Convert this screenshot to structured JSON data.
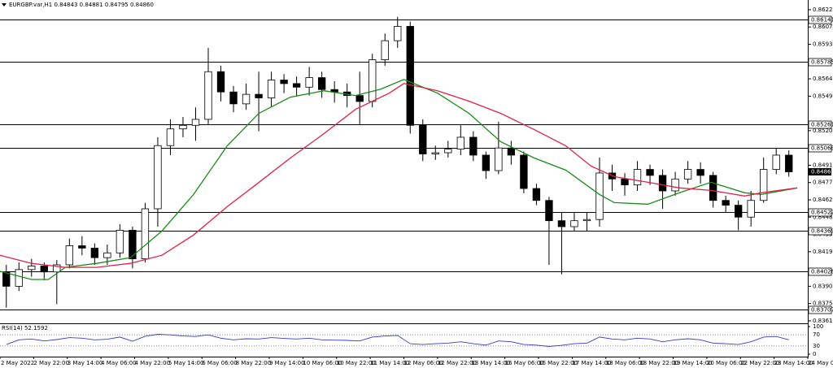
{
  "chart_data": [
    {
      "type": "candlestick",
      "title": "EURGBP.var,H1 0.84843 0.84881 0.84795 0.84860",
      "xlim": [
        0,
        384
      ],
      "xticks": [
        {
          "value": 0,
          "label": "2 May 2022"
        },
        {
          "value": 16,
          "label": "2 May 22:00"
        },
        {
          "value": 32,
          "label": "3 May 14:00"
        },
        {
          "value": 48,
          "label": "4 May 06:00"
        },
        {
          "value": 64,
          "label": "4 May 22:00"
        },
        {
          "value": 80,
          "label": "5 May 14:00"
        },
        {
          "value": 96,
          "label": "6 May 06:00"
        },
        {
          "value": 112,
          "label": "8 May 22:00"
        },
        {
          "value": 128,
          "label": "9 May 14:00"
        },
        {
          "value": 144,
          "label": "10 May 06:00"
        },
        {
          "value": 160,
          "label": "10 May 22:00"
        },
        {
          "value": 176,
          "label": "11 May 14:00"
        },
        {
          "value": 192,
          "label": "12 May 06:00"
        },
        {
          "value": 208,
          "label": "12 May 22:00"
        },
        {
          "value": 224,
          "label": "13 May 14:00"
        },
        {
          "value": 240,
          "label": "16 May 06:00"
        },
        {
          "value": 256,
          "label": "16 May 22:00"
        },
        {
          "value": 272,
          "label": "17 May 14:00"
        },
        {
          "value": 288,
          "label": "18 May 06:00"
        },
        {
          "value": 304,
          "label": "18 May 22:00"
        },
        {
          "value": 320,
          "label": "19 May 14:00"
        },
        {
          "value": 336,
          "label": "20 May 06:00"
        },
        {
          "value": 352,
          "label": "22 May 22:00"
        },
        {
          "value": 368,
          "label": "23 May 14:00"
        },
        {
          "value": 384,
          "label": "24 May 06:00"
        }
      ],
      "ylim": [
        0.83596,
        0.86274
      ],
      "yticks": [
        {
          "value": 0.8622,
          "label": "0.86220"
        },
        0.86075,
        {
          "value": 0.8593,
          "label": "0.85930"
        },
        {
          "value": 0.8564,
          "label": "0.85640"
        },
        0.85495,
        0.85205,
        {
          "value": 0.8506,
          "label": "0.85060"
        },
        0.84915,
        {
          "value": 0.8477,
          "label": "0.84770"
        },
        0.84625,
        {
          "value": 0.8448,
          "label": "0.84480"
        },
        0.84335,
        {
          "value": 0.8419,
          "label": "0.84190"
        },
        {
          "value": 0.839,
          "label": "0.83900"
        },
        0.83755,
        {
          "value": 0.8361,
          "label": "0.83610"
        }
      ],
      "levels": [
        0.86141,
        0.85785,
        0.85261,
        0.85063,
        0.84522,
        0.84369,
        0.84026,
        0.83707
      ],
      "current_price": {
        "value": 0.8486,
        "label": "0.84860"
      },
      "up_color": "#ffffff",
      "down_color": "#000000",
      "x": [
        3,
        9,
        15,
        21,
        27,
        33,
        39,
        45,
        51,
        57,
        63,
        69,
        75,
        81,
        87,
        93,
        99,
        105,
        111,
        117,
        123,
        129,
        135,
        141,
        147,
        153,
        159,
        165,
        171,
        177,
        183,
        189,
        195,
        201,
        207,
        213,
        219,
        225,
        231,
        237,
        243,
        249,
        255,
        261,
        267,
        273,
        279,
        285,
        291,
        297,
        303,
        309,
        315,
        321,
        327,
        333,
        339,
        345,
        351,
        357,
        363,
        369,
        375
      ],
      "open": [
        0.8402,
        0.839,
        0.8404,
        0.8407,
        0.8402,
        0.8408,
        0.8424,
        0.8422,
        0.8414,
        0.8418,
        0.8437,
        0.8413,
        0.8455,
        0.8508,
        0.8522,
        0.8525,
        0.853,
        0.857,
        0.8553,
        0.8543,
        0.8551,
        0.8548,
        0.8563,
        0.856,
        0.8557,
        0.8565,
        0.8555,
        0.8553,
        0.855,
        0.8545,
        0.858,
        0.8596,
        0.8608,
        0.8525,
        0.8501,
        0.8502,
        0.8505,
        0.8515,
        0.85,
        0.8487,
        0.8506,
        0.85,
        0.8472,
        0.8462,
        0.8445,
        0.844,
        0.8445,
        0.8446,
        0.8485,
        0.848,
        0.8475,
        0.8488,
        0.8483,
        0.847,
        0.848,
        0.8488,
        0.8483,
        0.8462,
        0.8458,
        0.8448,
        0.8462,
        0.8488,
        0.85
      ],
      "high": [
        0.8408,
        0.841,
        0.8413,
        0.841,
        0.8412,
        0.843,
        0.8432,
        0.8426,
        0.8425,
        0.8442,
        0.844,
        0.846,
        0.8515,
        0.853,
        0.8532,
        0.854,
        0.859,
        0.8575,
        0.8558,
        0.856,
        0.857,
        0.857,
        0.8568,
        0.8566,
        0.8574,
        0.857,
        0.8562,
        0.856,
        0.857,
        0.8585,
        0.8602,
        0.8616,
        0.8612,
        0.853,
        0.8508,
        0.8512,
        0.8525,
        0.852,
        0.8503,
        0.8528,
        0.8512,
        0.8503,
        0.8476,
        0.8465,
        0.8452,
        0.8452,
        0.8452,
        0.8498,
        0.8492,
        0.8485,
        0.8495,
        0.8492,
        0.8488,
        0.8486,
        0.8495,
        0.8494,
        0.8486,
        0.8466,
        0.8462,
        0.847,
        0.8498,
        0.8506,
        0.8504
      ],
      "low": [
        0.8372,
        0.8386,
        0.8398,
        0.8395,
        0.8375,
        0.8405,
        0.8416,
        0.8408,
        0.8408,
        0.8414,
        0.8405,
        0.841,
        0.844,
        0.85,
        0.8515,
        0.8512,
        0.8525,
        0.8545,
        0.8536,
        0.8538,
        0.852,
        0.854,
        0.8552,
        0.855,
        0.855,
        0.8548,
        0.8544,
        0.854,
        0.8526,
        0.854,
        0.8575,
        0.859,
        0.8518,
        0.8495,
        0.8496,
        0.8498,
        0.85,
        0.8495,
        0.848,
        0.8484,
        0.8492,
        0.8468,
        0.8458,
        0.8408,
        0.84,
        0.8436,
        0.8436,
        0.844,
        0.847,
        0.8466,
        0.847,
        0.8475,
        0.8455,
        0.8466,
        0.8476,
        0.8476,
        0.8456,
        0.8452,
        0.8437,
        0.844,
        0.846,
        0.8484,
        0.8482
      ],
      "close": [
        0.839,
        0.8404,
        0.8407,
        0.8402,
        0.8408,
        0.8424,
        0.8422,
        0.8414,
        0.8418,
        0.8437,
        0.8413,
        0.8455,
        0.8508,
        0.8522,
        0.8525,
        0.853,
        0.857,
        0.8553,
        0.8543,
        0.8551,
        0.8548,
        0.8563,
        0.856,
        0.8557,
        0.8565,
        0.8555,
        0.8553,
        0.855,
        0.8545,
        0.858,
        0.8596,
        0.8608,
        0.8525,
        0.8501,
        0.8502,
        0.8505,
        0.8515,
        0.85,
        0.8487,
        0.8506,
        0.85,
        0.8472,
        0.8462,
        0.8445,
        0.844,
        0.8445,
        0.8446,
        0.8485,
        0.848,
        0.8475,
        0.8488,
        0.8483,
        0.847,
        0.848,
        0.8488,
        0.8483,
        0.8462,
        0.8458,
        0.8448,
        0.8462,
        0.8488,
        0.85,
        0.8486
      ],
      "overlays": [
        {
          "color": "#1a8a1a",
          "x": [
            0,
            15,
            23,
            31,
            46,
            62,
            77,
            92,
            108,
            123,
            138,
            154,
            169,
            181,
            192,
            208,
            223,
            238,
            254,
            269,
            285,
            292,
            308,
            323,
            338,
            354,
            362,
            379
          ],
          "values": [
            0.84025,
            0.83957,
            0.83957,
            0.84059,
            0.84092,
            0.8414,
            0.84364,
            0.8467,
            0.85078,
            0.8535,
            0.85486,
            0.8554,
            0.855,
            0.85554,
            0.85635,
            0.8552,
            0.8535,
            0.85112,
            0.84976,
            0.84874,
            0.8467,
            0.84602,
            0.84589,
            0.84684,
            0.84772,
            0.84684,
            0.8467,
            0.84725
          ]
        },
        {
          "color": "#e0204a",
          "x": [
            0,
            15,
            31,
            46,
            62,
            77,
            92,
            108,
            123,
            138,
            154,
            169,
            185,
            192,
            208,
            223,
            238,
            254,
            269,
            281,
            292,
            308,
            323,
            338,
            354,
            362,
            379
          ],
          "values": [
            0.8416,
            0.84092,
            0.84059,
            0.84059,
            0.84092,
            0.8416,
            0.8433,
            0.84568,
            0.8477,
            0.84976,
            0.8518,
            0.85384,
            0.8552,
            0.85601,
            0.8554,
            0.85452,
            0.8535,
            0.85214,
            0.85078,
            0.84908,
            0.8482,
            0.84772,
            0.84725,
            0.84704,
            0.84657,
            0.84684,
            0.84725
          ]
        }
      ]
    },
    {
      "type": "line",
      "title": "RSI(14) 52.1592",
      "color": "#3a3ad0",
      "ylim": [
        0,
        100
      ],
      "yticks": [
        100,
        70,
        30,
        0
      ],
      "grid": true,
      "x": [
        3,
        9,
        15,
        21,
        27,
        33,
        39,
        45,
        51,
        57,
        63,
        69,
        75,
        81,
        87,
        93,
        99,
        105,
        111,
        117,
        123,
        129,
        135,
        141,
        147,
        153,
        159,
        165,
        171,
        177,
        183,
        189,
        195,
        201,
        207,
        213,
        219,
        225,
        231,
        237,
        243,
        249,
        255,
        261,
        267,
        273,
        279,
        285,
        291,
        297,
        303,
        309,
        315,
        321,
        327,
        333,
        339,
        345,
        351,
        357,
        363,
        369,
        375
      ],
      "values": [
        35,
        52,
        55,
        48,
        53,
        60,
        58,
        52,
        54,
        62,
        47,
        65,
        72,
        70,
        66,
        64,
        70,
        58,
        52,
        56,
        55,
        60,
        57,
        55,
        58,
        52,
        51,
        50,
        48,
        62,
        66,
        68,
        38,
        35,
        38,
        40,
        45,
        38,
        33,
        48,
        45,
        35,
        33,
        28,
        32,
        38,
        40,
        62,
        55,
        52,
        58,
        55,
        45,
        52,
        56,
        52,
        40,
        38,
        35,
        45,
        62,
        64,
        52.1592
      ]
    }
  ]
}
